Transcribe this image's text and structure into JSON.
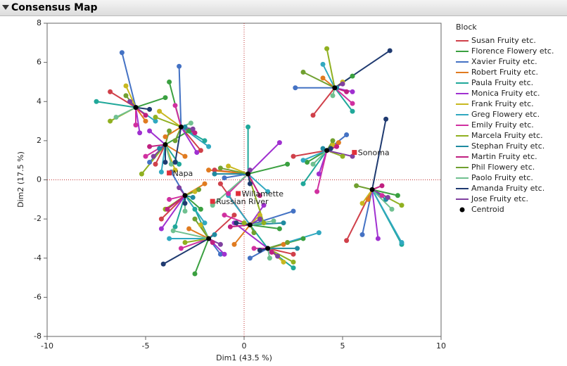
{
  "header": {
    "title": "Consensus Map"
  },
  "chart_data": {
    "type": "scatter",
    "xlabel": "Dim1  (43.5 %)",
    "ylabel": "Dim2  (17.5 %)",
    "xlim": [
      -10,
      10
    ],
    "ylim": [
      -8,
      8
    ],
    "xticks": [
      -10,
      -5,
      0,
      5,
      10
    ],
    "yticks": [
      -8,
      -6,
      -4,
      -2,
      0,
      2,
      4,
      6,
      8
    ],
    "legend_title": "Block",
    "centroid_label": "Centroid",
    "centroid_color": "#000000",
    "centroids": {
      "x": [
        -5.5,
        -3.2,
        -4.0,
        4.6,
        4.2,
        6.5,
        0.2,
        -3.0,
        -1.8,
        1.2,
        0.3
      ],
      "y": [
        3.7,
        2.7,
        1.8,
        4.7,
        1.5,
        -0.5,
        0.3,
        -0.8,
        -3.0,
        -3.5,
        -2.3
      ]
    },
    "products": {
      "names": [
        "Napa",
        "Sonoma",
        "Willamette",
        "Russian River"
      ],
      "x": [
        -3.8,
        5.6,
        -0.3,
        -1.6
      ],
      "y": [
        0.35,
        1.4,
        -0.7,
        -1.1
      ],
      "color": "#e0303a"
    },
    "series": [
      {
        "name": "Susan Fruity etc.",
        "color": "#d0404a",
        "x": [
          -6.8,
          -2.2,
          -4.5,
          3.5,
          2.5,
          5.2,
          -1.5,
          -4.2,
          -0.5,
          2.5,
          -1.2
        ],
        "y": [
          4.5,
          1.5,
          0.8,
          3.3,
          1.2,
          -3.1,
          0.5,
          -2.0,
          -1.8,
          -3.8,
          -0.2
        ]
      },
      {
        "name": "Florence Flowery etc.",
        "color": "#3aa040",
        "x": [
          -4.0,
          -3.8,
          -2.8,
          5.5,
          3.2,
          7.8,
          2.2,
          -2.2,
          -2.5,
          3.0,
          1.8
        ],
        "y": [
          4.2,
          5.0,
          2.5,
          5.3,
          0.9,
          -0.8,
          0.8,
          -1.5,
          -4.8,
          -3.0,
          -2.5
        ]
      },
      {
        "name": "Xavier Fruity etc.",
        "color": "#4472c4",
        "x": [
          -6.2,
          -3.3,
          -4.8,
          2.6,
          5.2,
          6.0,
          -1.0,
          -3.7,
          -1.2,
          0.3,
          2.5
        ],
        "y": [
          6.5,
          5.8,
          0.9,
          4.7,
          2.3,
          -2.8,
          0.1,
          0.4,
          -3.8,
          -4.0,
          -1.6
        ]
      },
      {
        "name": "Robert Fruity etc.",
        "color": "#e07b20",
        "x": [
          -5.0,
          -4.0,
          -3.0,
          4.0,
          4.8,
          6.3,
          -1.8,
          -2.0,
          -2.8,
          2.0,
          -0.5
        ],
        "y": [
          3.0,
          2.2,
          1.2,
          5.2,
          1.9,
          -1.0,
          0.5,
          -0.2,
          -2.5,
          -3.3,
          -3.3
        ]
      },
      {
        "name": "Paula Fruity etc.",
        "color": "#20a89a",
        "x": [
          -7.5,
          -2.0,
          -3.3,
          5.5,
          3.0,
          8.0,
          0.2,
          -3.5,
          -2.5,
          2.5,
          1.2
        ],
        "y": [
          4.0,
          2.0,
          0.8,
          3.5,
          -0.2,
          -3.3,
          2.7,
          -2.4,
          -1.5,
          -4.5,
          -3.5
        ]
      },
      {
        "name": "Monica Fruity etc.",
        "color": "#a030d0",
        "x": [
          -5.3,
          -2.4,
          -4.8,
          5.5,
          3.8,
          6.8,
          1.8,
          -4.2,
          -1.0,
          -0.5,
          1.0
        ],
        "y": [
          2.4,
          1.4,
          2.5,
          4.5,
          0.3,
          -3.0,
          1.9,
          -2.5,
          -3.8,
          -2.2,
          -1.3
        ]
      },
      {
        "name": "Frank Fruity etc.",
        "color": "#c8b820",
        "x": [
          -6.0,
          -4.3,
          -3.5,
          5.0,
          4.5,
          6.0,
          -0.8,
          -2.5,
          -2.2,
          2.0,
          0.8
        ],
        "y": [
          4.8,
          3.5,
          0.5,
          5.0,
          1.8,
          -1.2,
          0.7,
          -0.6,
          -2.3,
          -4.2,
          -1.8
        ]
      },
      {
        "name": "Greg Flowery etc.",
        "color": "#30a8c0",
        "x": [
          -4.5,
          -1.8,
          -4.2,
          4.0,
          3.0,
          8.0,
          1.2,
          -2.0,
          -3.8,
          3.8,
          -0.8
        ],
        "y": [
          3.0,
          1.7,
          0.4,
          5.9,
          1.0,
          -3.2,
          -0.6,
          -2.2,
          -3.0,
          -2.7,
          -0.8
        ]
      },
      {
        "name": "Emily Fruity etc.",
        "color": "#d030a0",
        "x": [
          -5.5,
          -3.5,
          -5.0,
          5.5,
          3.7,
          7.0,
          -0.8,
          -3.8,
          -3.2,
          0.5,
          -1.0
        ],
        "y": [
          2.8,
          3.8,
          1.2,
          3.9,
          -0.6,
          -0.8,
          -0.7,
          -1.0,
          -3.5,
          -3.5,
          -1.8
        ]
      },
      {
        "name": "Marcela Fruity etc.",
        "color": "#90b020",
        "x": [
          -6.8,
          -4.5,
          -5.2,
          4.2,
          5.0,
          8.0,
          1.0,
          -4.0,
          -3.0,
          2.5,
          0.0
        ],
        "y": [
          3.0,
          3.2,
          0.3,
          6.7,
          1.2,
          -1.3,
          -2.2,
          -1.5,
          -3.2,
          -4.2,
          -2.2
        ]
      },
      {
        "name": "Stephan Fruity etc.",
        "color": "#1f8aa0",
        "x": [
          -5.5,
          -3.0,
          -4.3,
          4.7,
          4.0,
          7.2,
          -1.5,
          -2.6,
          -1.5,
          2.7,
          2.0
        ],
        "y": [
          3.7,
          2.7,
          1.6,
          4.7,
          1.6,
          -1.0,
          0.3,
          -0.9,
          -2.8,
          -3.5,
          -2.2
        ]
      },
      {
        "name": "Martin Fruity etc.",
        "color": "#c02080",
        "x": [
          -5.0,
          -2.5,
          -4.8,
          5.2,
          4.7,
          7.0,
          0.8,
          -3.9,
          -1.6,
          1.4,
          -0.7
        ],
        "y": [
          3.3,
          2.4,
          1.7,
          4.5,
          1.7,
          -0.3,
          -0.8,
          -1.5,
          -3.2,
          -3.7,
          -2.4
        ]
      },
      {
        "name": "Phil Flowery etc.",
        "color": "#70a030",
        "x": [
          -6.0,
          -3.5,
          -3.8,
          3.0,
          4.5,
          5.7,
          -1.2,
          -2.3,
          -2.5,
          2.2,
          0.5
        ],
        "y": [
          4.3,
          2.0,
          2.5,
          5.5,
          2.0,
          -0.3,
          0.6,
          -0.5,
          -2.0,
          -3.2,
          -2.7
        ]
      },
      {
        "name": "Paolo Fruity etc.",
        "color": "#70c090",
        "x": [
          -6.5,
          -2.7,
          -3.7,
          4.5,
          3.5,
          7.5,
          -1.6,
          -3.0,
          -3.6,
          1.3,
          1.5
        ],
        "y": [
          3.2,
          2.9,
          0.8,
          4.3,
          0.8,
          -1.5,
          -1.3,
          -1.6,
          -2.6,
          -4.0,
          -2.1
        ]
      },
      {
        "name": "Amanda Fruity etc.",
        "color": "#1f3a70",
        "x": [
          -4.8,
          -3.5,
          -4.0,
          7.4,
          4.4,
          7.2,
          0.3,
          -3.0,
          -4.1,
          0.8,
          -0.4
        ],
        "y": [
          3.6,
          0.9,
          0.9,
          6.6,
          1.6,
          3.1,
          -0.2,
          -1.2,
          -4.3,
          -3.6,
          -2.2
        ]
      },
      {
        "name": "Jose Fruity etc.",
        "color": "#8040a0",
        "x": [
          -5.8,
          -2.6,
          -4.6,
          5.0,
          5.5,
          7.3,
          0.3,
          -3.3,
          -1.2,
          1.7,
          0.8
        ],
        "y": [
          4.0,
          2.6,
          1.2,
          4.9,
          1.2,
          -0.9,
          0.5,
          -0.4,
          -3.3,
          -3.9,
          -2.0
        ]
      }
    ]
  }
}
